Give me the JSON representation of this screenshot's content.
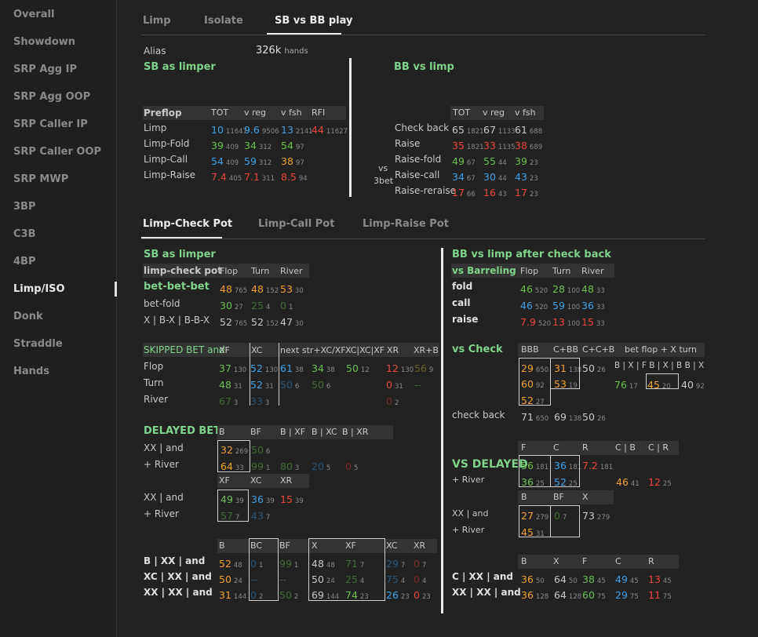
{
  "sidebar": {
    "items": [
      "Overall",
      "Showdown",
      "SRP Agg IP",
      "SRP Agg OOP",
      "SRP Caller IP",
      "SRP Caller OOP",
      "SRP MWP",
      "3BP",
      "C3B",
      "4BP",
      "Limp/ISO",
      "Donk",
      "Straddle",
      "Hands"
    ],
    "active": "Limp/ISO"
  },
  "top_tabs": [
    "Limp",
    "Isolate",
    "SB vs BB play"
  ],
  "alias_label": "Alias",
  "hands_count": "326k",
  "hands_label": "hands",
  "sb_title": "SB as limper",
  "bb_title": "BB vs limp",
  "preflop_headers": [
    "Preflop",
    "TOT",
    "v reg",
    "v fsh",
    "RFI"
  ],
  "preflop_rows": [
    {
      "label": "Limp",
      "cells": [
        [
          "10",
          "11647"
        ],
        [
          "9.6",
          "9506"
        ],
        [
          "13",
          "2141"
        ],
        [
          "44",
          "11627"
        ]
      ]
    },
    {
      "label": "Limp-Fold",
      "cells": [
        [
          "39",
          "409"
        ],
        [
          "34",
          "312"
        ],
        [
          "54",
          "97"
        ]
      ]
    },
    {
      "label": "Limp-Call",
      "cells": [
        [
          "54",
          "409"
        ],
        [
          "59",
          "312"
        ],
        [
          "38",
          "97"
        ]
      ]
    },
    {
      "label": "Limp-Raise",
      "cells": [
        [
          "7.4",
          "405"
        ],
        [
          "7.1",
          "311"
        ],
        [
          "8.5",
          "94"
        ]
      ]
    }
  ],
  "bb_headers": [
    "TOT",
    "v reg",
    "v fsh"
  ],
  "bb_rows": [
    {
      "label": "Check back",
      "cells": [
        [
          "65",
          "1821"
        ],
        [
          "67",
          "1133"
        ],
        [
          "61",
          "688"
        ]
      ]
    },
    {
      "label": "Raise",
      "cells": [
        [
          "35",
          "1821"
        ],
        [
          "33",
          "1135"
        ],
        [
          "38",
          "689"
        ]
      ]
    },
    {
      "label": "Raise-fold",
      "cells": [
        [
          "49",
          "67"
        ],
        [
          "55",
          "44"
        ],
        [
          "39",
          "23"
        ]
      ]
    },
    {
      "label": "Raise-call",
      "cells": [
        [
          "34",
          "67"
        ],
        [
          "30",
          "44"
        ],
        [
          "43",
          "23"
        ]
      ]
    },
    {
      "label": "Raise-reraise",
      "cells": [
        [
          "17",
          "66"
        ],
        [
          "16",
          "43"
        ],
        [
          "17",
          "23"
        ]
      ]
    }
  ],
  "vs3bet_label": [
    "vs",
    "3bet"
  ],
  "pot_tabs": [
    "Limp-Check Pot",
    "Limp-Call Pot",
    "Limp-Raise Pot"
  ],
  "sec1": {
    "title": "SB as limper",
    "hdr_label": "limp-check pot",
    "cols": [
      "Flop",
      "Turn",
      "River"
    ],
    "rows": [
      {
        "label": "bet-bet-bet",
        "cells": [
          [
            "48",
            "765"
          ],
          [
            "48",
            "152"
          ],
          [
            "53",
            "30"
          ]
        ]
      },
      {
        "label": "bet-fold",
        "cells": [
          [
            "30",
            "27"
          ],
          [
            "25",
            "4"
          ],
          [
            "0",
            "1"
          ]
        ]
      },
      {
        "label": "X | B-X | B-B-X",
        "cells": [
          [
            "52",
            "765"
          ],
          [
            "52",
            "152"
          ],
          [
            "47",
            "30"
          ]
        ]
      }
    ]
  },
  "sec2": {
    "title": "SKIPPED BET and",
    "cols": [
      "XF",
      "XC",
      "next str+XC/XF",
      "XC|XC|XF",
      "XR",
      "XR+B"
    ],
    "rows": [
      {
        "label": "Flop",
        "cells": [
          [
            "37",
            "130"
          ],
          [
            "52",
            "130"
          ],
          [
            "61",
            "38"
          ],
          [
            "34",
            "38"
          ],
          [
            "50",
            "12"
          ],
          [
            "12",
            "130"
          ],
          [
            "56",
            "9"
          ]
        ]
      },
      {
        "label": "Turn",
        "cells": [
          [
            "48",
            "31"
          ],
          [
            "52",
            "31"
          ],
          [
            "50",
            "6"
          ],
          [
            "50",
            "6"
          ],
          [
            "0",
            "31"
          ],
          [
            "--",
            ""
          ]
        ]
      },
      {
        "label": "River",
        "cells": [
          [
            "67",
            "3"
          ],
          [
            "33",
            "3"
          ],
          [
            "0",
            "2"
          ]
        ]
      }
    ]
  },
  "sec3": {
    "title": "DELAYED BET",
    "cols1": [
      "B",
      "BF",
      "B | XF",
      "B | XC",
      "B | XR"
    ],
    "cols2": [
      "XF",
      "XC",
      "XR"
    ],
    "rows1": [
      {
        "label": "XX | and",
        "cells": [
          [
            "32",
            "269"
          ],
          [
            "50",
            "6"
          ]
        ]
      },
      {
        "label": "+ River",
        "cells": [
          [
            "64",
            "33"
          ],
          [
            "99",
            "1"
          ],
          [
            "80",
            "3"
          ],
          [
            "20",
            "5"
          ],
          [
            "0",
            "5"
          ]
        ]
      }
    ],
    "rows2": [
      {
        "label": "XX | and",
        "cells": [
          [
            "49",
            "39"
          ],
          [
            "36",
            "39"
          ],
          [
            "15",
            "39"
          ]
        ]
      },
      {
        "label": "+ River",
        "cells": [
          [
            "57",
            "7"
          ],
          [
            "43",
            "7"
          ]
        ]
      }
    ]
  },
  "sec4": {
    "cols": [
      "B",
      "BC",
      "BF",
      "X",
      "XF",
      "XC",
      "XR"
    ],
    "rows": [
      {
        "label": "B | XX | and",
        "cells": [
          [
            "52",
            "48"
          ],
          [
            "0",
            "1"
          ],
          [
            "99",
            "1"
          ],
          [
            "48",
            "48"
          ],
          [
            "71",
            "7"
          ],
          [
            "29",
            "7"
          ],
          [
            "0",
            "7"
          ]
        ]
      },
      {
        "label": "XC | XX | and",
        "cells": [
          [
            "50",
            "24"
          ],
          [
            "--",
            ""
          ],
          [
            "--",
            ""
          ],
          [
            "50",
            "24"
          ],
          [
            "25",
            "4"
          ],
          [
            "75",
            "4"
          ],
          [
            "0",
            "4"
          ]
        ]
      },
      {
        "label": "XX | XX | and",
        "cells": [
          [
            "31",
            "144"
          ],
          [
            "0",
            "2"
          ],
          [
            "50",
            "2"
          ],
          [
            "69",
            "144"
          ],
          [
            "74",
            "23"
          ],
          [
            "26",
            "23"
          ],
          [
            "0",
            "23"
          ]
        ]
      }
    ]
  },
  "r1": {
    "title": "BB vs limp after check back",
    "hdr_label": "vs Barreling",
    "cols": [
      "Flop",
      "Turn",
      "River"
    ],
    "rows": [
      {
        "label": "fold",
        "cells": [
          [
            "46",
            "520"
          ],
          [
            "28",
            "100"
          ],
          [
            "48",
            "33"
          ]
        ]
      },
      {
        "label": "call",
        "cells": [
          [
            "46",
            "520"
          ],
          [
            "59",
            "100"
          ],
          [
            "36",
            "33"
          ]
        ]
      },
      {
        "label": "raise",
        "cells": [
          [
            "7.9",
            "520"
          ],
          [
            "13",
            "100"
          ],
          [
            "15",
            "33"
          ]
        ]
      }
    ]
  },
  "r2": {
    "title": "vs Check",
    "cols": [
      "BBB",
      "C+BB",
      "C+C+B",
      "bet flop + X turn"
    ],
    "sub": "B | X | F B | X | B B | X",
    "rows": [
      [
        "29",
        "650"
      ],
      [
        "31",
        "138"
      ],
      [
        "50",
        "26"
      ],
      [
        "60",
        "92"
      ],
      [
        "53",
        "19"
      ],
      [
        "52",
        "27"
      ],
      [
        "76",
        "17"
      ],
      [
        "45",
        "20"
      ],
      [
        "40",
        "92"
      ]
    ],
    "check_back_label": "check back",
    "check_back": [
      [
        "71",
        "650"
      ],
      [
        "69",
        "138"
      ],
      [
        "50",
        "26"
      ]
    ]
  },
  "r3": {
    "title": "VS DELAYED",
    "cols1": [
      "F",
      "C",
      "R",
      "C | B",
      "C | R"
    ],
    "cols2": [
      "B",
      "BF",
      "X"
    ],
    "river_label": "+ River",
    "xx_label": "XX | and",
    "cells1": [
      [
        "56",
        "181"
      ],
      [
        "36",
        "181"
      ],
      [
        "7.2",
        "181"
      ]
    ],
    "cells1b": [
      [
        "36",
        "25"
      ],
      [
        "52",
        "25"
      ],
      [
        "46",
        "41"
      ],
      [
        "12",
        "25"
      ]
    ],
    "cells2": [
      [
        "27",
        "279"
      ],
      [
        "0",
        "7"
      ],
      [
        "73",
        "279"
      ]
    ],
    "cells2b": [
      [
        "45",
        "31"
      ]
    ]
  },
  "r4": {
    "cols": [
      "B",
      "X",
      "F",
      "C",
      "R"
    ],
    "rows": [
      {
        "label": "C | XX | and",
        "cells": [
          [
            "36",
            "50"
          ],
          [
            "64",
            "50"
          ],
          [
            "38",
            "45"
          ],
          [
            "49",
            "45"
          ],
          [
            "13",
            "45"
          ]
        ]
      },
      {
        "label": "XX | XX | and",
        "cells": [
          [
            "36",
            "128"
          ],
          [
            "64",
            "128"
          ],
          [
            "60",
            "75"
          ],
          [
            "29",
            "75"
          ],
          [
            "11",
            "75"
          ]
        ]
      }
    ]
  }
}
